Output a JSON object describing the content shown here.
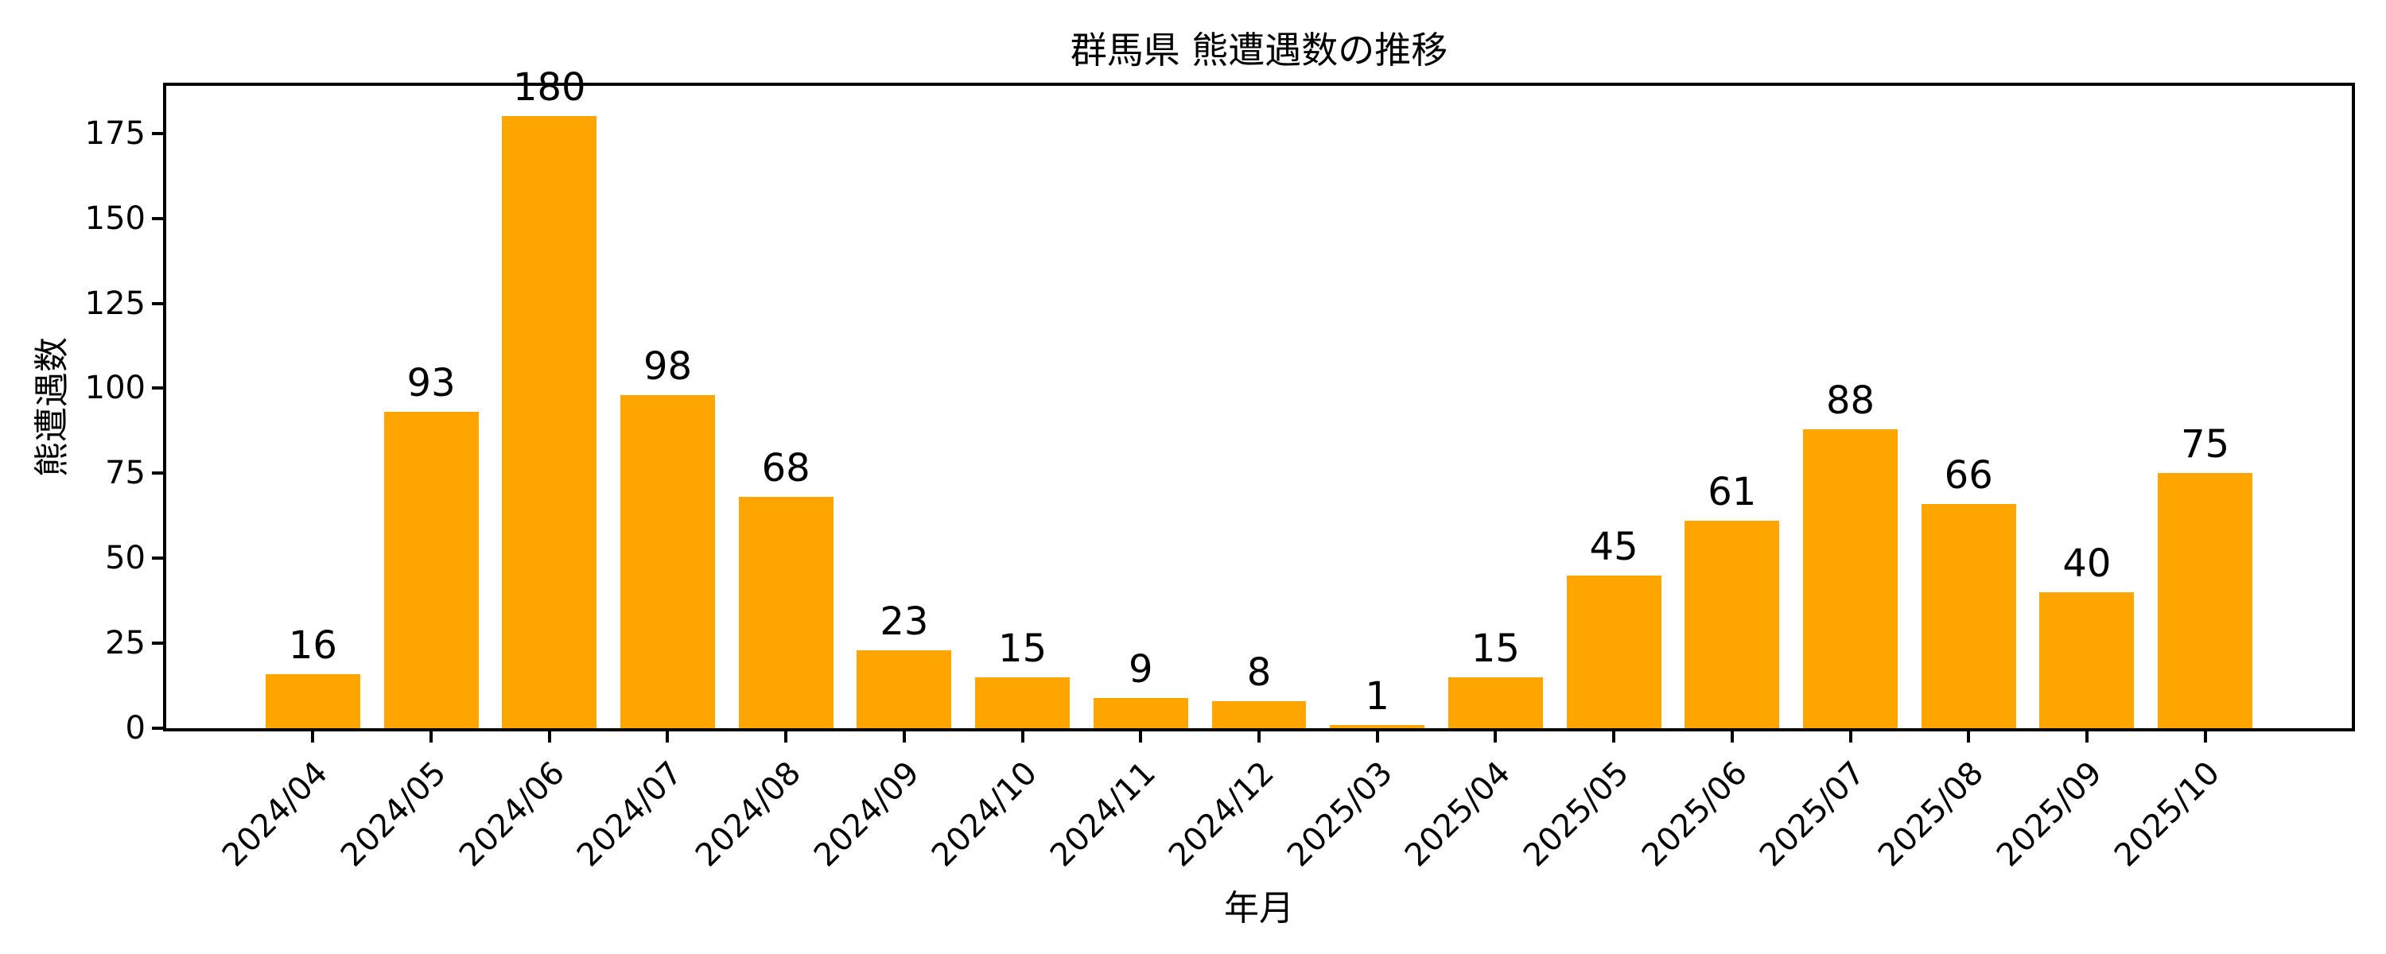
{
  "figure": {
    "background_color": "#ffffff",
    "text_color": "#000000",
    "spine_color": "#000000"
  },
  "chart_data": {
    "type": "bar",
    "title": "群馬県 熊遭遇数の推移",
    "xlabel": "年月",
    "ylabel": "熊遭遇数",
    "categories": [
      "2024/04",
      "2024/05",
      "2024/06",
      "2024/07",
      "2024/08",
      "2024/09",
      "2024/10",
      "2024/11",
      "2024/12",
      "2025/03",
      "2025/04",
      "2025/05",
      "2025/06",
      "2025/07",
      "2025/08",
      "2025/09",
      "2025/10"
    ],
    "values": [
      16,
      93,
      180,
      98,
      68,
      23,
      15,
      9,
      8,
      1,
      15,
      45,
      61,
      88,
      66,
      40,
      75
    ],
    "bar_color": "#FFA500",
    "yticks": [
      0,
      25,
      50,
      75,
      100,
      125,
      150,
      175
    ],
    "ylim": [
      0,
      189
    ],
    "grid": false,
    "legend": null,
    "bar_value_labels_shown": true,
    "xtick_rotation_deg": 45
  }
}
